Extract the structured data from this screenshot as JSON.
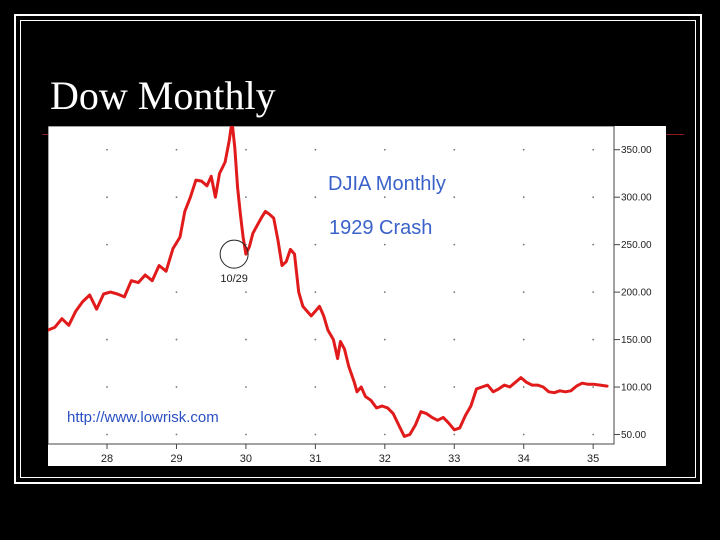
{
  "slide": {
    "title": "Dow Monthly"
  },
  "colors": {
    "background": "#000000",
    "line": "#e11b1b",
    "text_blue": "#3a62c9",
    "accent": "#8b1a1a"
  },
  "chart_data": {
    "type": "line",
    "title": "DJIA Monthly",
    "subtitle": "1929 Crash",
    "source": "http://www.lowrisk.com",
    "xlabel": "",
    "ylabel": "",
    "x_ticks": [
      "28",
      "29",
      "30",
      "31",
      "32",
      "33",
      "34",
      "35"
    ],
    "y_ticks": [
      "50.00",
      "100.00",
      "150.00",
      "200.00",
      "250.00",
      "300.00",
      "350.00"
    ],
    "xlim": [
      27.15,
      35.3
    ],
    "ylim": [
      40,
      375
    ],
    "grid": "dotted",
    "annotation": {
      "label": "10/29",
      "x": 29.83,
      "y": 240
    },
    "series": [
      {
        "points": [
          [
            27.15,
            160
          ],
          [
            27.25,
            163
          ],
          [
            27.35,
            172
          ],
          [
            27.45,
            165
          ],
          [
            27.55,
            180
          ],
          [
            27.65,
            190
          ],
          [
            27.75,
            197
          ],
          [
            27.85,
            182
          ],
          [
            27.95,
            198
          ],
          [
            28.05,
            200
          ],
          [
            28.15,
            198
          ],
          [
            28.25,
            195
          ],
          [
            28.35,
            212
          ],
          [
            28.45,
            210
          ],
          [
            28.55,
            218
          ],
          [
            28.65,
            212
          ],
          [
            28.75,
            228
          ],
          [
            28.85,
            222
          ],
          [
            28.95,
            246
          ],
          [
            29.05,
            258
          ],
          [
            29.12,
            285
          ],
          [
            29.2,
            300
          ],
          [
            29.28,
            318
          ],
          [
            29.36,
            317
          ],
          [
            29.44,
            312
          ],
          [
            29.5,
            322
          ],
          [
            29.56,
            300
          ],
          [
            29.62,
            325
          ],
          [
            29.7,
            337
          ],
          [
            29.76,
            360
          ],
          [
            29.8,
            380
          ],
          [
            29.84,
            352
          ],
          [
            29.88,
            310
          ],
          [
            29.92,
            282
          ],
          [
            29.96,
            258
          ],
          [
            30.0,
            240
          ],
          [
            30.05,
            248
          ],
          [
            30.1,
            262
          ],
          [
            30.16,
            270
          ],
          [
            30.22,
            278
          ],
          [
            30.28,
            285
          ],
          [
            30.34,
            282
          ],
          [
            30.4,
            278
          ],
          [
            30.46,
            255
          ],
          [
            30.52,
            228
          ],
          [
            30.58,
            232
          ],
          [
            30.64,
            245
          ],
          [
            30.7,
            240
          ],
          [
            30.76,
            200
          ],
          [
            30.82,
            185
          ],
          [
            30.88,
            180
          ],
          [
            30.94,
            175
          ],
          [
            31.0,
            180
          ],
          [
            31.06,
            185
          ],
          [
            31.12,
            175
          ],
          [
            31.18,
            160
          ],
          [
            31.26,
            150
          ],
          [
            31.32,
            130
          ],
          [
            31.36,
            148
          ],
          [
            31.42,
            140
          ],
          [
            31.48,
            122
          ],
          [
            31.56,
            105
          ],
          [
            31.6,
            95
          ],
          [
            31.66,
            100
          ],
          [
            31.72,
            90
          ],
          [
            31.8,
            86
          ],
          [
            31.88,
            78
          ],
          [
            31.96,
            80
          ],
          [
            32.04,
            78
          ],
          [
            32.12,
            72
          ],
          [
            32.2,
            60
          ],
          [
            32.28,
            48
          ],
          [
            32.36,
            50
          ],
          [
            32.44,
            60
          ],
          [
            32.52,
            74
          ],
          [
            32.6,
            72
          ],
          [
            32.68,
            68
          ],
          [
            32.76,
            65
          ],
          [
            32.84,
            68
          ],
          [
            32.92,
            62
          ],
          [
            33.0,
            55
          ],
          [
            33.08,
            57
          ],
          [
            33.16,
            70
          ],
          [
            33.24,
            80
          ],
          [
            33.32,
            98
          ],
          [
            33.4,
            100
          ],
          [
            33.48,
            102
          ],
          [
            33.56,
            95
          ],
          [
            33.64,
            98
          ],
          [
            33.72,
            102
          ],
          [
            33.8,
            100
          ],
          [
            33.88,
            105
          ],
          [
            33.96,
            110
          ],
          [
            34.04,
            105
          ],
          [
            34.12,
            102
          ],
          [
            34.2,
            102
          ],
          [
            34.28,
            100
          ],
          [
            34.36,
            95
          ],
          [
            34.44,
            94
          ],
          [
            34.52,
            96
          ],
          [
            34.6,
            95
          ],
          [
            34.68,
            96
          ],
          [
            34.76,
            101
          ],
          [
            34.84,
            104
          ],
          [
            34.92,
            103
          ],
          [
            35.0,
            103
          ],
          [
            35.1,
            102
          ],
          [
            35.2,
            101
          ]
        ]
      }
    ]
  }
}
